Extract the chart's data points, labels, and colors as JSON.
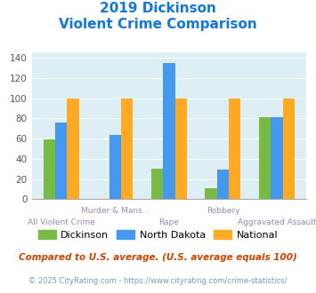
{
  "title_line1": "2019 Dickinson",
  "title_line2": "Violent Crime Comparison",
  "categories": [
    "All Violent Crime",
    "Murder & Mans...",
    "Rape",
    "Robbery",
    "Aggravated Assault"
  ],
  "upper_labels": [
    "",
    "Murder & Mans...",
    "",
    "Robbery",
    ""
  ],
  "lower_labels": [
    "All Violent Crime",
    "",
    "Rape",
    "",
    "Aggravated Assault"
  ],
  "dickinson": [
    59,
    0,
    30,
    11,
    81
  ],
  "north_dakota": [
    76,
    64,
    135,
    29,
    81
  ],
  "national": [
    100,
    100,
    100,
    100,
    100
  ],
  "color_dickinson": "#77bb44",
  "color_nd": "#4499ee",
  "color_national": "#ffaa22",
  "ylim": [
    0,
    145
  ],
  "yticks": [
    0,
    20,
    40,
    60,
    80,
    100,
    120,
    140
  ],
  "bg_color": "#ddeef5",
  "footnote": "Compared to U.S. average. (U.S. average equals 100)",
  "credit": "© 2025 CityRating.com - https://www.cityrating.com/crime-statistics/",
  "title_color": "#1177dd",
  "footnote_color": "#cc4400",
  "credit_color": "#7799bb",
  "legend_labels": [
    "Dickinson",
    "North Dakota",
    "National"
  ],
  "bar_width": 0.22
}
